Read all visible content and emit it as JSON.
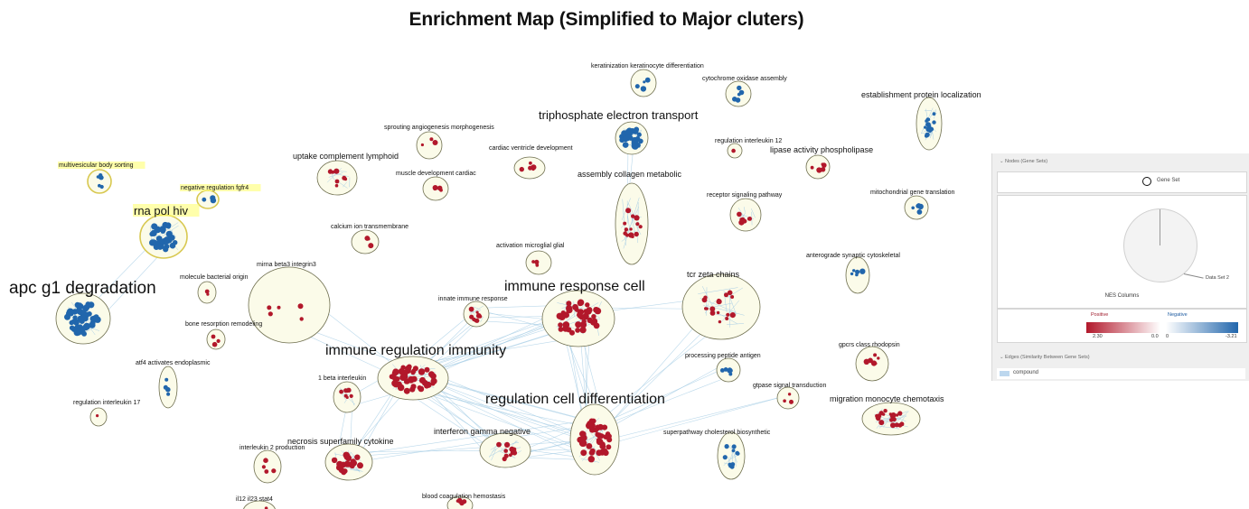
{
  "title": "Enrichment Map (Simplified to Major cluters)",
  "colors": {
    "positive": "#b2182b",
    "negative": "#2166ac",
    "cluster_fill": "#fbfbe9",
    "cluster_stroke": "#6e6e4e",
    "selected_stroke": "#d8c850",
    "edge": "#a9cfe6"
  },
  "clusters": [
    {
      "label": "apc g1 degradation",
      "color": "negative"
    },
    {
      "label": "rna pol hiv",
      "color": "negative"
    },
    {
      "label": "multivesicular body sorting",
      "color": "negative"
    },
    {
      "label": "negative regulation fgfr4",
      "color": "negative"
    },
    {
      "label": "molecule bacterial origin",
      "color": "positive"
    },
    {
      "label": "bone resorption remodeling",
      "color": "positive"
    },
    {
      "label": "atf4 activates endoplasmic",
      "color": "negative"
    },
    {
      "label": "regulation interleukin 17",
      "color": "positive"
    },
    {
      "label": "uptake complement lymphoid",
      "color": "positive"
    },
    {
      "label": "calcium ion transmembrane",
      "color": "positive"
    },
    {
      "label": "mirna beta3 integrin3",
      "color": "positive"
    },
    {
      "label": "sprouting angiogenesis morphogenesis",
      "color": "positive"
    },
    {
      "label": "cardiac ventricle development",
      "color": "positive"
    },
    {
      "label": "muscle development cardiac",
      "color": "positive"
    },
    {
      "label": "keratinization keratinocyte differentiation",
      "color": "negative"
    },
    {
      "label": "cytochrome oxidase assembly",
      "color": "negative"
    },
    {
      "label": "triphosphate electron transport",
      "color": "negative"
    },
    {
      "label": "regulation interleukin 12",
      "color": "positive"
    },
    {
      "label": "establishment protein localization",
      "color": "negative"
    },
    {
      "label": "lipase activity phospholipase",
      "color": "positive"
    },
    {
      "label": "assembly collagen metabolic",
      "color": "positive"
    },
    {
      "label": "receptor signaling pathway",
      "color": "positive"
    },
    {
      "label": "mitochondrial gene translation",
      "color": "negative"
    },
    {
      "label": "activation microglial glial",
      "color": "positive"
    },
    {
      "label": "anterograde synaptic cytoskeletal",
      "color": "negative"
    },
    {
      "label": "immune response cell",
      "color": "positive"
    },
    {
      "label": "innate immune response",
      "color": "positive"
    },
    {
      "label": "tcr zeta chains",
      "color": "positive"
    },
    {
      "label": "immune regulation immunity",
      "color": "positive"
    },
    {
      "label": "processing peptide antigen",
      "color": "negative"
    },
    {
      "label": "gpcrs class rhodopsin",
      "color": "positive"
    },
    {
      "label": "1 beta interleukin",
      "color": "positive"
    },
    {
      "label": "regulation cell differentiation",
      "color": "positive"
    },
    {
      "label": "gtpase signal transduction",
      "color": "positive"
    },
    {
      "label": "migration monocyte chemotaxis",
      "color": "positive"
    },
    {
      "label": "interferon gamma negative",
      "color": "positive"
    },
    {
      "label": "necrosis superfamily cytokine",
      "color": "positive"
    },
    {
      "label": "superpathway cholesterol biosynthetic",
      "color": "negative"
    },
    {
      "label": "interleukin 2 production",
      "color": "positive"
    },
    {
      "label": "il12 il23 stat4",
      "color": "positive"
    },
    {
      "label": "blood coagulation hemostasis",
      "color": "positive"
    }
  ],
  "legend": {
    "nodes_header": "Nodes (Gene Sets)",
    "gene_set_label": "Gene Set",
    "pie_caption": "NES Columns",
    "pie_pointer_label": "Data Set 2",
    "positive_label": "Positive",
    "negative_label": "Negative",
    "positive_max": "2.30",
    "positive_min": "0.0",
    "negative_min": "0",
    "negative_max": "-3.21",
    "edges_header": "Edges (Similarity Between Gene Sets)",
    "edge_type": "compound"
  }
}
